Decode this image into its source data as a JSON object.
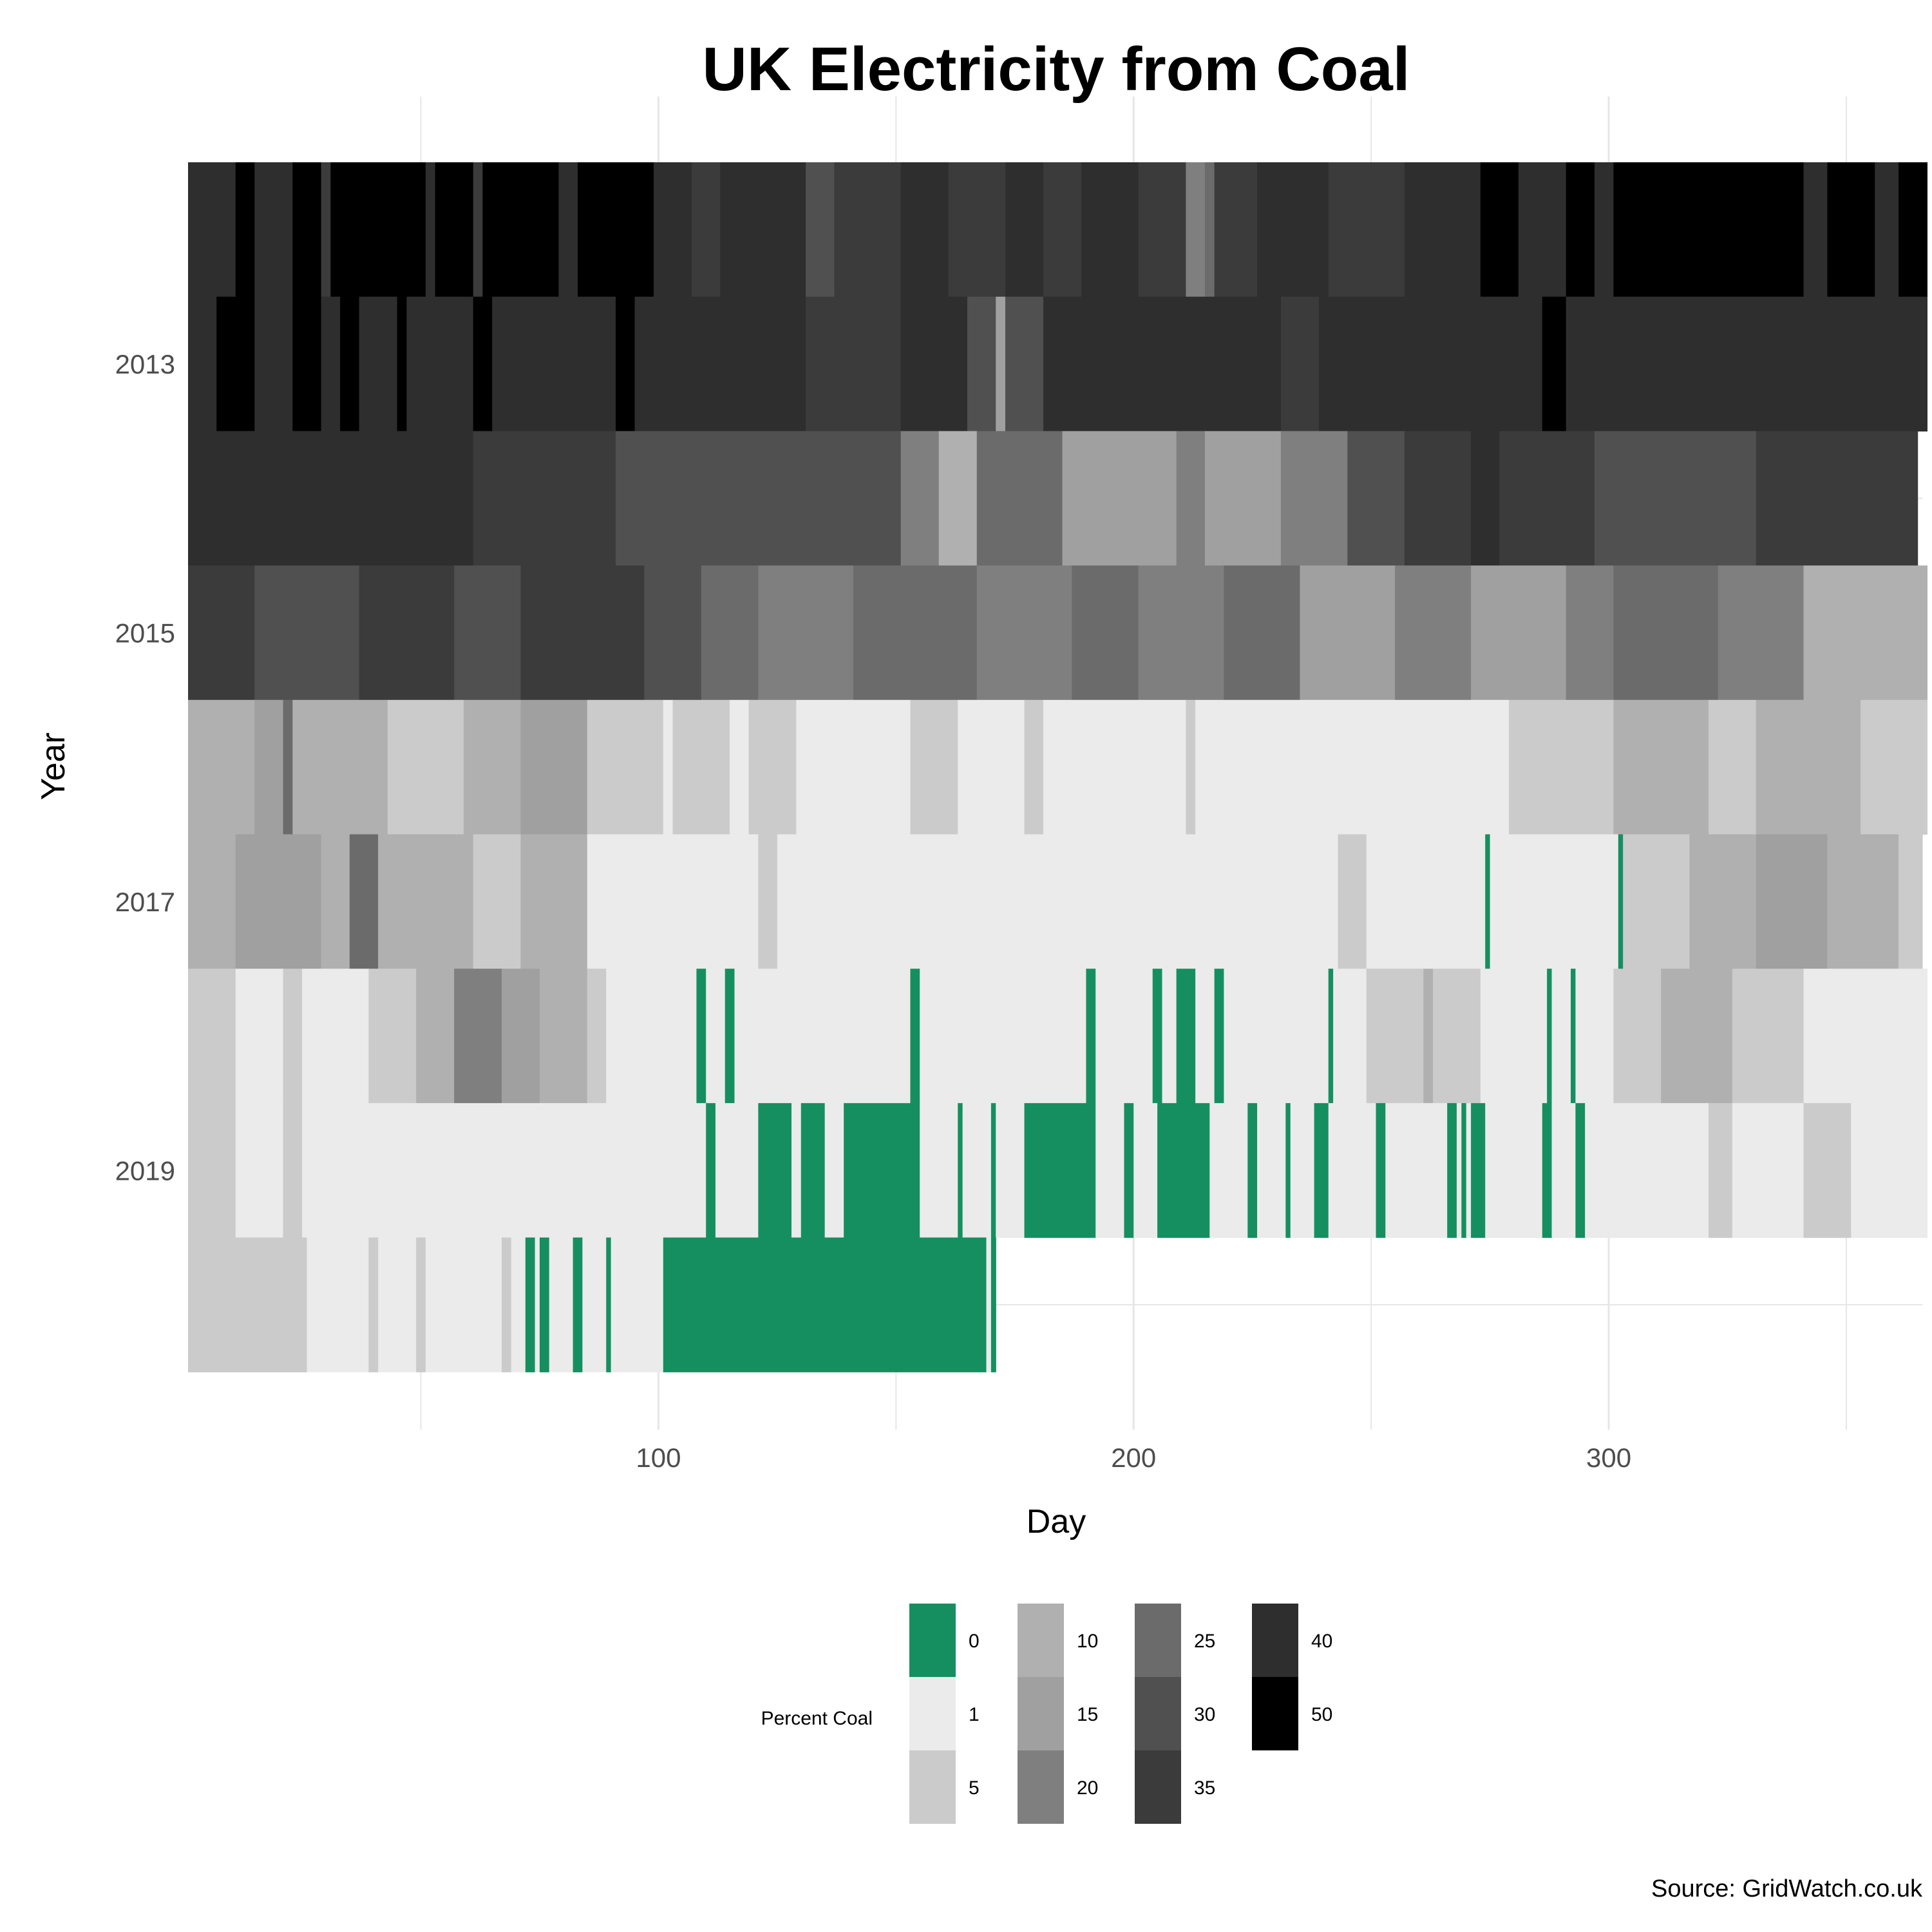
{
  "chart_data": {
    "type": "heatmap",
    "title": "UK Electricity from Coal",
    "xlabel": "Day",
    "ylabel": "Year",
    "caption": "Source: GridWatch.co.uk",
    "x_ticks": [
      100,
      200,
      300
    ],
    "y_ticks": [
      "2013",
      "2015",
      "2017",
      "2019"
    ],
    "xlim": [
      1,
      366
    ],
    "years": [
      2012,
      2013,
      2014,
      2015,
      2016,
      2017,
      2018,
      2019,
      2020
    ],
    "grid": true,
    "legend": {
      "title": "Percent Coal",
      "position": "bottom",
      "entries": [
        {
          "label": "0",
          "color": "#168f60"
        },
        {
          "label": "1",
          "color": "#ebebeb"
        },
        {
          "label": "5",
          "color": "#cbcbcb"
        },
        {
          "label": "10",
          "color": "#b0b0b0"
        },
        {
          "label": "15",
          "color": "#a0a0a0"
        },
        {
          "label": "20",
          "color": "#7f7f7f"
        },
        {
          "label": "25",
          "color": "#6b6b6b"
        },
        {
          "label": "30",
          "color": "#505050"
        },
        {
          "label": "35",
          "color": "#3b3b3b"
        },
        {
          "label": "40",
          "color": "#2e2e2e"
        },
        {
          "label": "50",
          "color": "#000000"
        }
      ]
    },
    "rows": [
      {
        "year": 2012,
        "start_day": 1,
        "end_day": 366,
        "segments": [
          {
            "end": 10,
            "c": 9
          },
          {
            "end": 14,
            "c": 10
          },
          {
            "end": 22,
            "c": 9
          },
          {
            "end": 28,
            "c": 10
          },
          {
            "end": 30,
            "c": 8
          },
          {
            "end": 50,
            "c": 10
          },
          {
            "end": 52,
            "c": 9
          },
          {
            "end": 60,
            "c": 10
          },
          {
            "end": 62,
            "c": 8
          },
          {
            "end": 78,
            "c": 10
          },
          {
            "end": 82,
            "c": 9
          },
          {
            "end": 98,
            "c": 10
          },
          {
            "end": 106,
            "c": 9
          },
          {
            "end": 112,
            "c": 8
          },
          {
            "end": 130,
            "c": 9
          },
          {
            "end": 136,
            "c": 7
          },
          {
            "end": 150,
            "c": 8
          },
          {
            "end": 160,
            "c": 9
          },
          {
            "end": 172,
            "c": 8
          },
          {
            "end": 180,
            "c": 9
          },
          {
            "end": 188,
            "c": 8
          },
          {
            "end": 200,
            "c": 9
          },
          {
            "end": 210,
            "c": 8
          },
          {
            "end": 214,
            "c": 5
          },
          {
            "end": 216,
            "c": 6
          },
          {
            "end": 225,
            "c": 8
          },
          {
            "end": 240,
            "c": 9
          },
          {
            "end": 256,
            "c": 8
          },
          {
            "end": 272,
            "c": 9
          },
          {
            "end": 280,
            "c": 10
          },
          {
            "end": 290,
            "c": 9
          },
          {
            "end": 296,
            "c": 10
          },
          {
            "end": 300,
            "c": 9
          },
          {
            "end": 340,
            "c": 10
          },
          {
            "end": 345,
            "c": 9
          },
          {
            "end": 355,
            "c": 10
          },
          {
            "end": 360,
            "c": 9
          },
          {
            "end": 366,
            "c": 10
          }
        ]
      },
      {
        "year": 2013,
        "start_day": 1,
        "end_day": 366,
        "segments": [
          {
            "end": 6,
            "c": 9
          },
          {
            "end": 14,
            "c": 10
          },
          {
            "end": 22,
            "c": 9
          },
          {
            "end": 28,
            "c": 10
          },
          {
            "end": 32,
            "c": 9
          },
          {
            "end": 36,
            "c": 10
          },
          {
            "end": 44,
            "c": 9
          },
          {
            "end": 46,
            "c": 10
          },
          {
            "end": 60,
            "c": 9
          },
          {
            "end": 64,
            "c": 10
          },
          {
            "end": 90,
            "c": 9
          },
          {
            "end": 94,
            "c": 10
          },
          {
            "end": 130,
            "c": 9
          },
          {
            "end": 150,
            "c": 8
          },
          {
            "end": 164,
            "c": 9
          },
          {
            "end": 170,
            "c": 7
          },
          {
            "end": 172,
            "c": 4
          },
          {
            "end": 180,
            "c": 7
          },
          {
            "end": 230,
            "c": 9
          },
          {
            "end": 238,
            "c": 8
          },
          {
            "end": 285,
            "c": 9
          },
          {
            "end": 290,
            "c": 10
          },
          {
            "end": 366,
            "c": 9
          }
        ]
      },
      {
        "year": 2014,
        "start_day": 1,
        "end_day": 364,
        "segments": [
          {
            "end": 60,
            "c": 9
          },
          {
            "end": 90,
            "c": 8
          },
          {
            "end": 150,
            "c": 7
          },
          {
            "end": 158,
            "c": 5
          },
          {
            "end": 166,
            "c": 3
          },
          {
            "end": 184,
            "c": 6
          },
          {
            "end": 208,
            "c": 4
          },
          {
            "end": 214,
            "c": 5
          },
          {
            "end": 230,
            "c": 4
          },
          {
            "end": 244,
            "c": 5
          },
          {
            "end": 256,
            "c": 7
          },
          {
            "end": 270,
            "c": 8
          },
          {
            "end": 276,
            "c": 9
          },
          {
            "end": 296,
            "c": 8
          },
          {
            "end": 330,
            "c": 7
          },
          {
            "end": 364,
            "c": 8
          }
        ]
      },
      {
        "year": 2015,
        "start_day": 1,
        "end_day": 366,
        "segments": [
          {
            "end": 14,
            "c": 8
          },
          {
            "end": 36,
            "c": 7
          },
          {
            "end": 56,
            "c": 8
          },
          {
            "end": 70,
            "c": 7
          },
          {
            "end": 96,
            "c": 8
          },
          {
            "end": 108,
            "c": 7
          },
          {
            "end": 120,
            "c": 6
          },
          {
            "end": 140,
            "c": 5
          },
          {
            "end": 166,
            "c": 6
          },
          {
            "end": 186,
            "c": 5
          },
          {
            "end": 200,
            "c": 6
          },
          {
            "end": 218,
            "c": 5
          },
          {
            "end": 234,
            "c": 6
          },
          {
            "end": 254,
            "c": 4
          },
          {
            "end": 270,
            "c": 5
          },
          {
            "end": 290,
            "c": 4
          },
          {
            "end": 300,
            "c": 5
          },
          {
            "end": 322,
            "c": 6
          },
          {
            "end": 340,
            "c": 5
          },
          {
            "end": 366,
            "c": 3
          }
        ]
      },
      {
        "year": 2016,
        "start_day": 1,
        "end_day": 366,
        "segments": [
          {
            "end": 14,
            "c": 3
          },
          {
            "end": 20,
            "c": 4
          },
          {
            "end": 22,
            "c": 6
          },
          {
            "end": 42,
            "c": 3
          },
          {
            "end": 58,
            "c": 2
          },
          {
            "end": 70,
            "c": 3
          },
          {
            "end": 84,
            "c": 4
          },
          {
            "end": 100,
            "c": 2
          },
          {
            "end": 102,
            "c": 1
          },
          {
            "end": 114,
            "c": 2
          },
          {
            "end": 118,
            "c": 1
          },
          {
            "end": 128,
            "c": 2
          },
          {
            "end": 152,
            "c": 1
          },
          {
            "end": 162,
            "c": 2
          },
          {
            "end": 176,
            "c": 1
          },
          {
            "end": 180,
            "c": 2
          },
          {
            "end": 210,
            "c": 1
          },
          {
            "end": 212,
            "c": 2
          },
          {
            "end": 278,
            "c": 1
          },
          {
            "end": 300,
            "c": 2
          },
          {
            "end": 320,
            "c": 3
          },
          {
            "end": 330,
            "c": 2
          },
          {
            "end": 352,
            "c": 3
          },
          {
            "end": 366,
            "c": 2
          }
        ]
      },
      {
        "year": 2017,
        "start_day": 1,
        "end_day": 365,
        "segments": [
          {
            "end": 10,
            "c": 3
          },
          {
            "end": 28,
            "c": 4
          },
          {
            "end": 34,
            "c": 3
          },
          {
            "end": 40,
            "c": 6
          },
          {
            "end": 60,
            "c": 3
          },
          {
            "end": 70,
            "c": 2
          },
          {
            "end": 84,
            "c": 3
          },
          {
            "end": 120,
            "c": 1
          },
          {
            "end": 124,
            "c": 2
          },
          {
            "end": 242,
            "c": 1
          },
          {
            "end": 248,
            "c": 2
          },
          {
            "end": 273,
            "c": 1
          },
          {
            "end": 274,
            "c": 0
          },
          {
            "end": 301,
            "c": 1
          },
          {
            "end": 302,
            "c": 0
          },
          {
            "end": 316,
            "c": 2
          },
          {
            "end": 330,
            "c": 3
          },
          {
            "end": 345,
            "c": 4
          },
          {
            "end": 360,
            "c": 3
          },
          {
            "end": 365,
            "c": 2
          }
        ]
      },
      {
        "year": 2018,
        "start_day": 1,
        "end_day": 366,
        "segments": [
          {
            "end": 10,
            "c": 2
          },
          {
            "end": 20,
            "c": 1
          },
          {
            "end": 24,
            "c": 2
          },
          {
            "end": 38,
            "c": 1
          },
          {
            "end": 48,
            "c": 2
          },
          {
            "end": 56,
            "c": 3
          },
          {
            "end": 66,
            "c": 5
          },
          {
            "end": 74,
            "c": 4
          },
          {
            "end": 84,
            "c": 3
          },
          {
            "end": 88,
            "c": 2
          },
          {
            "end": 107,
            "c": 1
          },
          {
            "end": 109,
            "c": 0
          },
          {
            "end": 113,
            "c": 1
          },
          {
            "end": 115,
            "c": 0
          },
          {
            "end": 152,
            "c": 1
          },
          {
            "end": 154,
            "c": 0
          },
          {
            "end": 189,
            "c": 1
          },
          {
            "end": 191,
            "c": 0
          },
          {
            "end": 203,
            "c": 1
          },
          {
            "end": 205,
            "c": 0
          },
          {
            "end": 208,
            "c": 1
          },
          {
            "end": 212,
            "c": 0
          },
          {
            "end": 216,
            "c": 1
          },
          {
            "end": 218,
            "c": 0
          },
          {
            "end": 240,
            "c": 1
          },
          {
            "end": 241,
            "c": 0
          },
          {
            "end": 248,
            "c": 1
          },
          {
            "end": 260,
            "c": 2
          },
          {
            "end": 262,
            "c": 3
          },
          {
            "end": 272,
            "c": 2
          },
          {
            "end": 286,
            "c": 1
          },
          {
            "end": 287,
            "c": 0
          },
          {
            "end": 291,
            "c": 1
          },
          {
            "end": 292,
            "c": 0
          },
          {
            "end": 300,
            "c": 1
          },
          {
            "end": 310,
            "c": 2
          },
          {
            "end": 325,
            "c": 3
          },
          {
            "end": 340,
            "c": 2
          },
          {
            "end": 366,
            "c": 1
          }
        ]
      },
      {
        "year": 2019,
        "start_day": 1,
        "end_day": 366,
        "segments": [
          {
            "end": 10,
            "c": 2
          },
          {
            "end": 20,
            "c": 1
          },
          {
            "end": 24,
            "c": 2
          },
          {
            "end": 32,
            "c": 1
          },
          {
            "end": 109,
            "c": 1
          },
          {
            "end": 111,
            "c": 0
          },
          {
            "end": 120,
            "c": 1
          },
          {
            "end": 127,
            "c": 0
          },
          {
            "end": 129,
            "c": 1
          },
          {
            "end": 134,
            "c": 0
          },
          {
            "end": 138,
            "c": 1
          },
          {
            "end": 154,
            "c": 0
          },
          {
            "end": 162,
            "c": 1
          },
          {
            "end": 163,
            "c": 0
          },
          {
            "end": 169,
            "c": 1
          },
          {
            "end": 170,
            "c": 0
          },
          {
            "end": 176,
            "c": 1
          },
          {
            "end": 191,
            "c": 0
          },
          {
            "end": 197,
            "c": 1
          },
          {
            "end": 199,
            "c": 0
          },
          {
            "end": 204,
            "c": 1
          },
          {
            "end": 215,
            "c": 0
          },
          {
            "end": 223,
            "c": 1
          },
          {
            "end": 225,
            "c": 0
          },
          {
            "end": 231,
            "c": 1
          },
          {
            "end": 232,
            "c": 0
          },
          {
            "end": 237,
            "c": 1
          },
          {
            "end": 240,
            "c": 0
          },
          {
            "end": 250,
            "c": 1
          },
          {
            "end": 252,
            "c": 0
          },
          {
            "end": 265,
            "c": 1
          },
          {
            "end": 267,
            "c": 0
          },
          {
            "end": 268,
            "c": 1
          },
          {
            "end": 269,
            "c": 0
          },
          {
            "end": 270,
            "c": 1
          },
          {
            "end": 273,
            "c": 0
          },
          {
            "end": 285,
            "c": 1
          },
          {
            "end": 287,
            "c": 0
          },
          {
            "end": 292,
            "c": 1
          },
          {
            "end": 294,
            "c": 0
          },
          {
            "end": 320,
            "c": 1
          },
          {
            "end": 325,
            "c": 2
          },
          {
            "end": 340,
            "c": 1
          },
          {
            "end": 350,
            "c": 2
          },
          {
            "end": 366,
            "c": 1
          }
        ]
      },
      {
        "year": 2020,
        "start_day": 1,
        "end_day": 170,
        "segments": [
          {
            "end": 12,
            "c": 2
          },
          {
            "end": 25,
            "c": 2
          },
          {
            "end": 38,
            "c": 1
          },
          {
            "end": 40,
            "c": 2
          },
          {
            "end": 48,
            "c": 1
          },
          {
            "end": 50,
            "c": 2
          },
          {
            "end": 66,
            "c": 1
          },
          {
            "end": 68,
            "c": 2
          },
          {
            "end": 71,
            "c": 1
          },
          {
            "end": 73,
            "c": 0
          },
          {
            "end": 74,
            "c": 1
          },
          {
            "end": 76,
            "c": 0
          },
          {
            "end": 81,
            "c": 1
          },
          {
            "end": 83,
            "c": 0
          },
          {
            "end": 88,
            "c": 1
          },
          {
            "end": 89,
            "c": 0
          },
          {
            "end": 100,
            "c": 1
          },
          {
            "end": 168,
            "c": 0
          },
          {
            "end": 169,
            "c": 1
          },
          {
            "end": 170,
            "c": 0
          }
        ]
      }
    ]
  }
}
